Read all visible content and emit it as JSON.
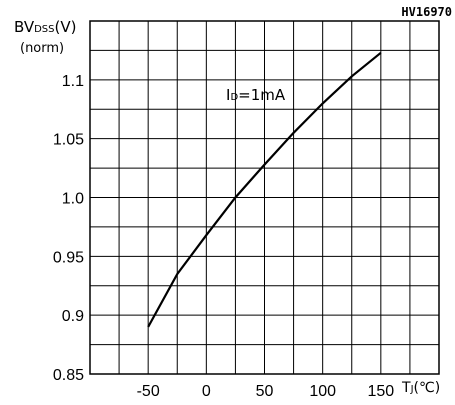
{
  "part_number": "HV16970",
  "chart_data": {
    "type": "line",
    "ylabel": "BVDSS(V)",
    "ylabel_parts": {
      "main": "BV",
      "sub": "DSS",
      "unit": "(V)"
    },
    "ylabel_norm": "(norm)",
    "xlabel": "TJ(℃)",
    "xlabel_parts": {
      "main": "T",
      "sub": "J",
      "unit": "(℃)"
    },
    "annotation": "ID=1mA",
    "annotation_parts": {
      "main": "I",
      "sub": "D",
      "rest": "=1mA"
    },
    "xlim": [
      -100,
      200
    ],
    "ylim": [
      0.85,
      1.15
    ],
    "x_ticks": [
      -50,
      0,
      50,
      100,
      150
    ],
    "x_tick_labels": [
      "-50",
      "0",
      "50",
      "100",
      "150"
    ],
    "y_ticks": [
      0.85,
      0.9,
      0.95,
      1.0,
      1.05,
      1.1
    ],
    "y_tick_labels": [
      "0.85",
      "0.9",
      "0.95",
      "1.0",
      "1.05",
      "1.1"
    ],
    "grid": true,
    "series": [
      {
        "x": [
          -50,
          -25,
          0,
          25,
          50,
          75,
          100,
          125,
          150
        ],
        "y": [
          0.89,
          0.935,
          0.968,
          1.0,
          1.028,
          1.055,
          1.08,
          1.103,
          1.123
        ]
      }
    ]
  }
}
